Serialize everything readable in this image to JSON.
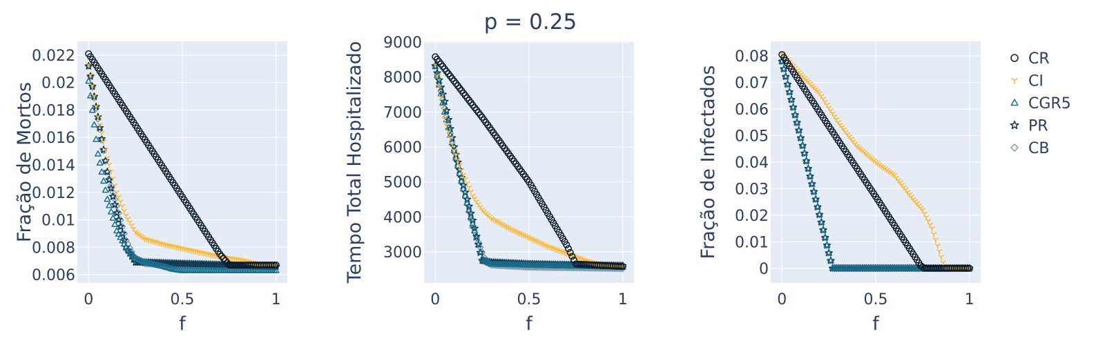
{
  "title": "p = 0.25",
  "colors": {
    "CR": "#0d1b2a",
    "CI": "#fdb833",
    "CGR5": "#1b6f8e",
    "PR": "#0f3a52",
    "CB": "#7f9ba8"
  },
  "legend": [
    {
      "name": "CR",
      "symbol": "circle-open"
    },
    {
      "name": "CI",
      "symbol": "y-up"
    },
    {
      "name": "CGR5",
      "symbol": "triangle-open"
    },
    {
      "name": "PR",
      "symbol": "star-open"
    },
    {
      "name": "CB",
      "symbol": "diamond-open"
    }
  ],
  "chart_data": [
    {
      "type": "scatter",
      "xlabel": "f",
      "ylabel": "Fração de Mortos",
      "xlim": [
        -0.06,
        1.06
      ],
      "ylim": [
        0.0054,
        0.023
      ],
      "xticks": [
        0,
        0.5,
        1
      ],
      "xtick_labels": [
        "0",
        "0.5",
        "1"
      ],
      "yticks": [
        0.006,
        0.008,
        0.01,
        0.012,
        0.014,
        0.016,
        0.018,
        0.02,
        0.022
      ],
      "ytick_labels": [
        "0.006",
        "0.008",
        "0.01",
        "0.012",
        "0.014",
        "0.016",
        "0.018",
        "0.02",
        "0.022"
      ],
      "series": [
        {
          "name": "CR",
          "x": [
            0,
            0.7,
            0.75,
            1
          ],
          "y": [
            0.0221,
            0.0075,
            0.0067,
            0.0067
          ]
        },
        {
          "name": "CI",
          "x": [
            0,
            0.05,
            0.1,
            0.15,
            0.2,
            0.25,
            0.3,
            0.4,
            0.5,
            0.6,
            0.7,
            0.8,
            0.9,
            1
          ],
          "y": [
            0.0213,
            0.0175,
            0.0145,
            0.012,
            0.0103,
            0.0091,
            0.0086,
            0.0082,
            0.0079,
            0.0076,
            0.0073,
            0.0071,
            0.0068,
            0.0067
          ]
        },
        {
          "name": "CGR5",
          "x": [
            0,
            0.05,
            0.1,
            0.15,
            0.2,
            0.25,
            0.3,
            0.4,
            0.45,
            0.5,
            0.6,
            0.8,
            1
          ],
          "y": [
            0.0201,
            0.0148,
            0.0115,
            0.0092,
            0.008,
            0.0072,
            0.0069,
            0.0066,
            0.0064,
            0.0063,
            0.0063,
            0.0063,
            0.0063
          ]
        },
        {
          "name": "PR",
          "x": [
            0,
            0.05,
            0.1,
            0.15,
            0.2,
            0.25,
            0.3,
            0.5,
            0.75,
            1
          ],
          "y": [
            0.0212,
            0.0175,
            0.0135,
            0.0105,
            0.008,
            0.0069,
            0.0069,
            0.0068,
            0.0067,
            0.0066
          ]
        },
        {
          "name": "CB",
          "x": [
            0,
            0.1,
            0.2,
            0.25,
            0.3,
            0.5,
            0.75,
            1
          ],
          "y": [
            0.0212,
            0.0135,
            0.0085,
            0.0071,
            0.0068,
            0.0067,
            0.0066,
            0.0066
          ]
        }
      ]
    },
    {
      "type": "scatter",
      "title": "p = 0.25",
      "xlabel": "f",
      "ylabel": "Tempo Total Hospitalizado",
      "xlim": [
        -0.06,
        1.06
      ],
      "ylim": [
        2110,
        9020
      ],
      "xticks": [
        0,
        0.5,
        1
      ],
      "xtick_labels": [
        "0",
        "0.5",
        "1"
      ],
      "yticks": [
        3000,
        4000,
        5000,
        6000,
        7000,
        8000,
        9000
      ],
      "ytick_labels": [
        "3000",
        "4000",
        "5000",
        "6000",
        "7000",
        "8000",
        "9000"
      ],
      "series": [
        {
          "name": "CR",
          "x": [
            0,
            0.25,
            0.5,
            0.7,
            0.75,
            1
          ],
          "y": [
            8580,
            6850,
            5000,
            3200,
            2650,
            2580
          ]
        },
        {
          "name": "CI",
          "x": [
            0,
            0.05,
            0.1,
            0.15,
            0.2,
            0.25,
            0.3,
            0.4,
            0.5,
            0.6,
            0.7,
            0.8,
            0.9,
            1
          ],
          "y": [
            8350,
            6800,
            5900,
            5200,
            4600,
            4200,
            3950,
            3650,
            3400,
            3150,
            2950,
            2750,
            2600,
            2580
          ]
        },
        {
          "name": "CGR5",
          "x": [
            0,
            0.05,
            0.1,
            0.15,
            0.2,
            0.25,
            0.3,
            0.5,
            1
          ],
          "y": [
            8300,
            7000,
            5900,
            4800,
            3800,
            2800,
            2650,
            2620,
            2560
          ]
        },
        {
          "name": "PR",
          "x": [
            0,
            0.05,
            0.1,
            0.15,
            0.2,
            0.25,
            0.3,
            0.5,
            0.75,
            1
          ],
          "y": [
            8320,
            7300,
            6000,
            4900,
            3900,
            2750,
            2700,
            2650,
            2620,
            2600
          ]
        },
        {
          "name": "CB",
          "x": [
            0,
            0.1,
            0.2,
            0.27,
            0.3,
            0.5,
            1
          ],
          "y": [
            8320,
            5900,
            3700,
            2700,
            2620,
            2560,
            2520
          ]
        }
      ]
    },
    {
      "type": "scatter",
      "xlabel": "f",
      "ylabel": "Fração de Infectados",
      "xlim": [
        -0.06,
        1.06
      ],
      "ylim": [
        -0.0055,
        0.0855
      ],
      "xticks": [
        0,
        0.5,
        1
      ],
      "xtick_labels": [
        "0",
        "0.5",
        "1"
      ],
      "yticks": [
        0,
        0.01,
        0.02,
        0.03,
        0.04,
        0.05,
        0.06,
        0.07,
        0.08
      ],
      "ytick_labels": [
        "0",
        "0.01",
        "0.02",
        "0.03",
        "0.04",
        "0.05",
        "0.06",
        "0.07",
        "0.08"
      ],
      "series": [
        {
          "name": "CR",
          "x": [
            0,
            0.25,
            0.5,
            0.74,
            0.76,
            1
          ],
          "y": [
            0.0805,
            0.0535,
            0.027,
            0.001,
            0,
            0
          ]
        },
        {
          "name": "CI",
          "x": [
            0,
            0.1,
            0.2,
            0.3,
            0.4,
            0.5,
            0.6,
            0.7,
            0.75,
            0.8,
            0.87,
            0.9,
            1
          ],
          "y": [
            0.081,
            0.073,
            0.066,
            0.055,
            0.046,
            0.04,
            0.035,
            0.026,
            0.022,
            0.015,
            0,
            0,
            0
          ]
        },
        {
          "name": "CGR5",
          "x": [
            0,
            0.27,
            0.3,
            1
          ],
          "y": [
            0.078,
            0,
            0,
            0
          ]
        },
        {
          "name": "PR",
          "x": [
            0,
            0.27,
            0.3,
            1
          ],
          "y": [
            0.078,
            0,
            0,
            0
          ]
        },
        {
          "name": "CB",
          "x": [
            0,
            0.27,
            0.3,
            1
          ],
          "y": [
            0.078,
            0,
            0,
            0
          ]
        }
      ]
    }
  ]
}
